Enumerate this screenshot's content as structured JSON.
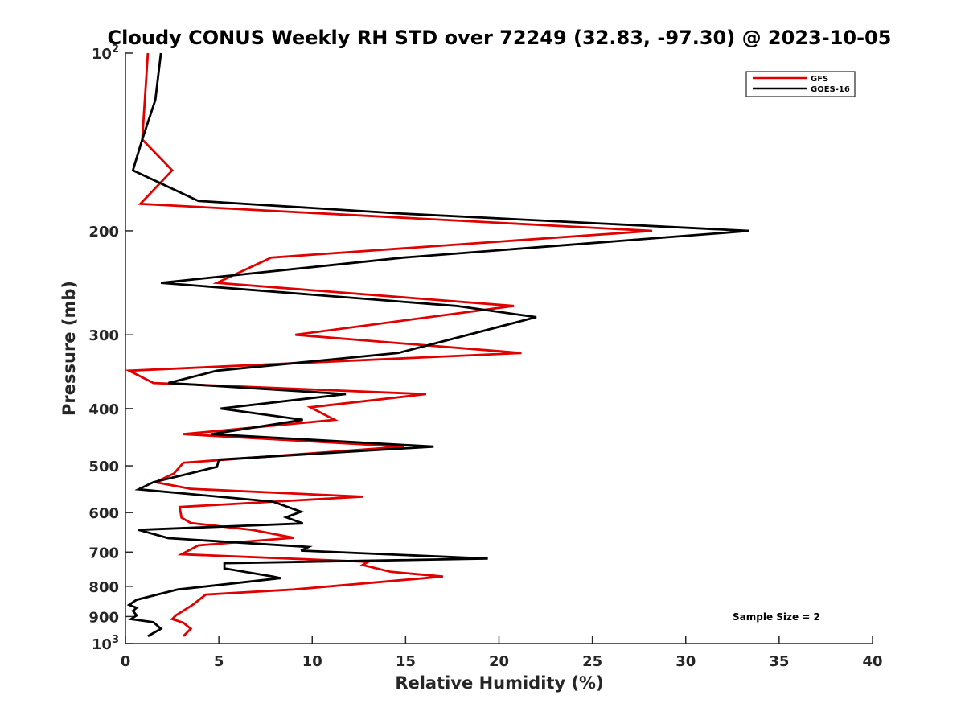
{
  "chart_data": {
    "type": "line",
    "title": "Cloudy CONUS Weekly RH STD over 72249 (32.83, -97.30) @ 2023-10-05",
    "xlabel": "Relative Humidity (%)",
    "ylabel": "Pressure (mb)",
    "xlim": [
      0,
      40
    ],
    "ylim": [
      100,
      1000
    ],
    "yscale": "log",
    "y_reversed": true,
    "grid": false,
    "legend_position": "top-right",
    "xticks": [
      0,
      5,
      10,
      15,
      20,
      25,
      30,
      35,
      40
    ],
    "yticks": [
      {
        "value": 100,
        "label": "10",
        "sup": "2"
      },
      {
        "value": 200,
        "label": "200"
      },
      {
        "value": 300,
        "label": "300"
      },
      {
        "value": 400,
        "label": "400"
      },
      {
        "value": 500,
        "label": "500"
      },
      {
        "value": 600,
        "label": "600"
      },
      {
        "value": 700,
        "label": "700"
      },
      {
        "value": 800,
        "label": "800"
      },
      {
        "value": 900,
        "label": "900"
      },
      {
        "value": 1000,
        "label": "10",
        "sup": "3"
      }
    ],
    "series": [
      {
        "name": "GFS",
        "color": "#e00000",
        "points": [
          {
            "x": 1.2,
            "y": 100
          },
          {
            "x": 0.9,
            "y": 140
          },
          {
            "x": 2.5,
            "y": 158
          },
          {
            "x": 0.8,
            "y": 180
          },
          {
            "x": 28.2,
            "y": 200
          },
          {
            "x": 7.8,
            "y": 222
          },
          {
            "x": 4.9,
            "y": 245
          },
          {
            "x": 20.8,
            "y": 268
          },
          {
            "x": 9.1,
            "y": 300
          },
          {
            "x": 21.2,
            "y": 322
          },
          {
            "x": 0.2,
            "y": 345
          },
          {
            "x": 1.5,
            "y": 362
          },
          {
            "x": 16.1,
            "y": 378
          },
          {
            "x": 9.9,
            "y": 398
          },
          {
            "x": 11.2,
            "y": 418
          },
          {
            "x": 3.1,
            "y": 442
          },
          {
            "x": 14.9,
            "y": 464
          },
          {
            "x": 3.1,
            "y": 494
          },
          {
            "x": 2.6,
            "y": 515
          },
          {
            "x": 1.6,
            "y": 533
          },
          {
            "x": 3.5,
            "y": 547
          },
          {
            "x": 12.7,
            "y": 564
          },
          {
            "x": 2.9,
            "y": 587
          },
          {
            "x": 3.0,
            "y": 612
          },
          {
            "x": 3.5,
            "y": 625
          },
          {
            "x": 6.8,
            "y": 642
          },
          {
            "x": 9.0,
            "y": 662
          },
          {
            "x": 3.9,
            "y": 682
          },
          {
            "x": 3.0,
            "y": 706
          },
          {
            "x": 13.0,
            "y": 727
          },
          {
            "x": 12.7,
            "y": 736
          },
          {
            "x": 14.2,
            "y": 756
          },
          {
            "x": 17.0,
            "y": 770
          },
          {
            "x": 9.0,
            "y": 810
          },
          {
            "x": 4.3,
            "y": 826
          },
          {
            "x": 3.6,
            "y": 860
          },
          {
            "x": 2.7,
            "y": 896
          },
          {
            "x": 2.5,
            "y": 909
          },
          {
            "x": 3.1,
            "y": 922
          },
          {
            "x": 3.5,
            "y": 944
          },
          {
            "x": 3.1,
            "y": 972
          }
        ]
      },
      {
        "name": "GOES-16",
        "color": "#000000",
        "points": [
          {
            "x": 1.9,
            "y": 100
          },
          {
            "x": 1.6,
            "y": 120
          },
          {
            "x": 0.9,
            "y": 140
          },
          {
            "x": 0.4,
            "y": 158
          },
          {
            "x": 3.9,
            "y": 178
          },
          {
            "x": 14.8,
            "y": 187
          },
          {
            "x": 33.4,
            "y": 200
          },
          {
            "x": 14.9,
            "y": 222
          },
          {
            "x": 1.9,
            "y": 245
          },
          {
            "x": 17.7,
            "y": 268
          },
          {
            "x": 22.0,
            "y": 280
          },
          {
            "x": 14.6,
            "y": 322
          },
          {
            "x": 4.9,
            "y": 345
          },
          {
            "x": 2.3,
            "y": 362
          },
          {
            "x": 11.8,
            "y": 378
          },
          {
            "x": 5.1,
            "y": 400
          },
          {
            "x": 9.5,
            "y": 418
          },
          {
            "x": 4.6,
            "y": 442
          },
          {
            "x": 16.5,
            "y": 464
          },
          {
            "x": 5.0,
            "y": 488
          },
          {
            "x": 4.9,
            "y": 502
          },
          {
            "x": 1.5,
            "y": 533
          },
          {
            "x": 0.7,
            "y": 548
          },
          {
            "x": 7.9,
            "y": 575
          },
          {
            "x": 9.4,
            "y": 598
          },
          {
            "x": 8.6,
            "y": 611
          },
          {
            "x": 9.5,
            "y": 626
          },
          {
            "x": 0.7,
            "y": 642
          },
          {
            "x": 2.3,
            "y": 663
          },
          {
            "x": 9.8,
            "y": 686
          },
          {
            "x": 9.4,
            "y": 696
          },
          {
            "x": 19.4,
            "y": 718
          },
          {
            "x": 5.3,
            "y": 731
          },
          {
            "x": 5.3,
            "y": 746
          },
          {
            "x": 7.9,
            "y": 770
          },
          {
            "x": 8.3,
            "y": 775
          },
          {
            "x": 2.8,
            "y": 810
          },
          {
            "x": 0.6,
            "y": 843
          },
          {
            "x": 0.2,
            "y": 860
          },
          {
            "x": 0.6,
            "y": 870
          },
          {
            "x": 0.4,
            "y": 880
          },
          {
            "x": 0.6,
            "y": 896
          },
          {
            "x": 0.3,
            "y": 909
          },
          {
            "x": 1.5,
            "y": 920
          },
          {
            "x": 1.9,
            "y": 944
          },
          {
            "x": 1.2,
            "y": 972
          }
        ]
      }
    ],
    "annotation": "Sample Size = 2"
  }
}
